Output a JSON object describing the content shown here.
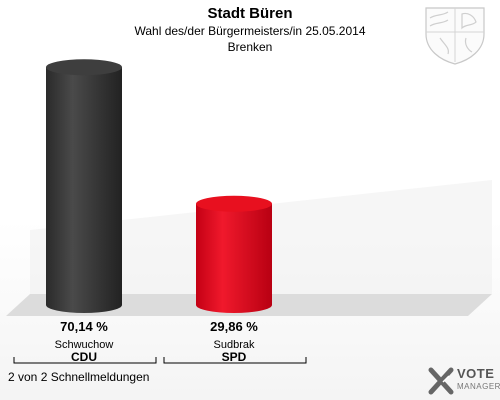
{
  "header": {
    "title": "Stadt Büren",
    "subtitle": "Wahl des/der Bürgermeisters/in  25.05.2014",
    "district": "Brenken"
  },
  "chart_data": {
    "type": "bar",
    "categories": [
      "Schwuchow",
      "Sudbrak"
    ],
    "parties": [
      "CDU",
      "SPD"
    ],
    "values": [
      70.14,
      29.86
    ],
    "value_labels": [
      "70,14 %",
      "29,86 %"
    ],
    "colors": [
      "#3a3a3a",
      "#e3001b"
    ],
    "ylim": [
      0,
      100
    ],
    "unit": "%"
  },
  "footer": {
    "status": "2 von 2 Schnellmeldungen"
  },
  "logo": {
    "line1": "VOTE",
    "line2": "MANAGER",
    "icon": "vote-manager-x-icon"
  },
  "crest_icon": "coat-of-arms-icon"
}
